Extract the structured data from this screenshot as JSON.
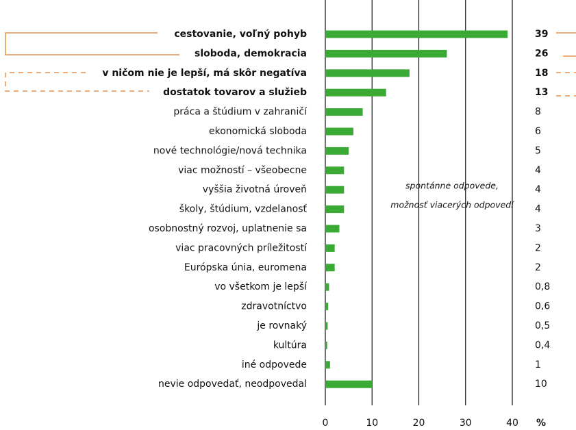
{
  "chart_data": {
    "type": "bar",
    "orientation": "horizontal",
    "categories": [
      "cestovanie, voľný pohyb",
      "sloboda, demokracia",
      "v ničom nie je lepší, má skôr negatíva",
      "dostatok tovarov a služieb",
      "práca a štúdium v zahraničí",
      "ekonomická sloboda",
      "nové technológie/nová technika",
      "viac možností – všeobecne",
      "vyššia životná úroveň",
      "školy, štúdium, vzdelanosť",
      "osobnostný rozvoj, uplatnenie sa",
      "viac pracovných príležitostí",
      "Európska únia, euromena",
      "vo všetkom je lepší",
      "zdravotníctvo",
      "je rovnaký",
      "kultúra",
      "iné odpovede",
      "nevie odpovedať, neodpovedal"
    ],
    "values": [
      39,
      26,
      18,
      13,
      8,
      6,
      5,
      4,
      4,
      4,
      3,
      2,
      2,
      0.8,
      0.6,
      0.5,
      0.4,
      1,
      10
    ],
    "value_labels": [
      "39",
      "26",
      "18",
      "13",
      "8",
      "6",
      "5",
      "4",
      "4",
      "4",
      "3",
      "2",
      "2",
      "0,8",
      "0,6",
      "0,5",
      "0,4",
      "1",
      "10"
    ],
    "color": "#3aaa35",
    "xlim": [
      0,
      40
    ],
    "xticks": [
      0,
      10,
      20,
      30,
      40
    ],
    "grid": true,
    "xlabel": "%",
    "annotation": [
      "spontánne odpovede,",
      "možnosť viacerých odpovedí"
    ]
  }
}
